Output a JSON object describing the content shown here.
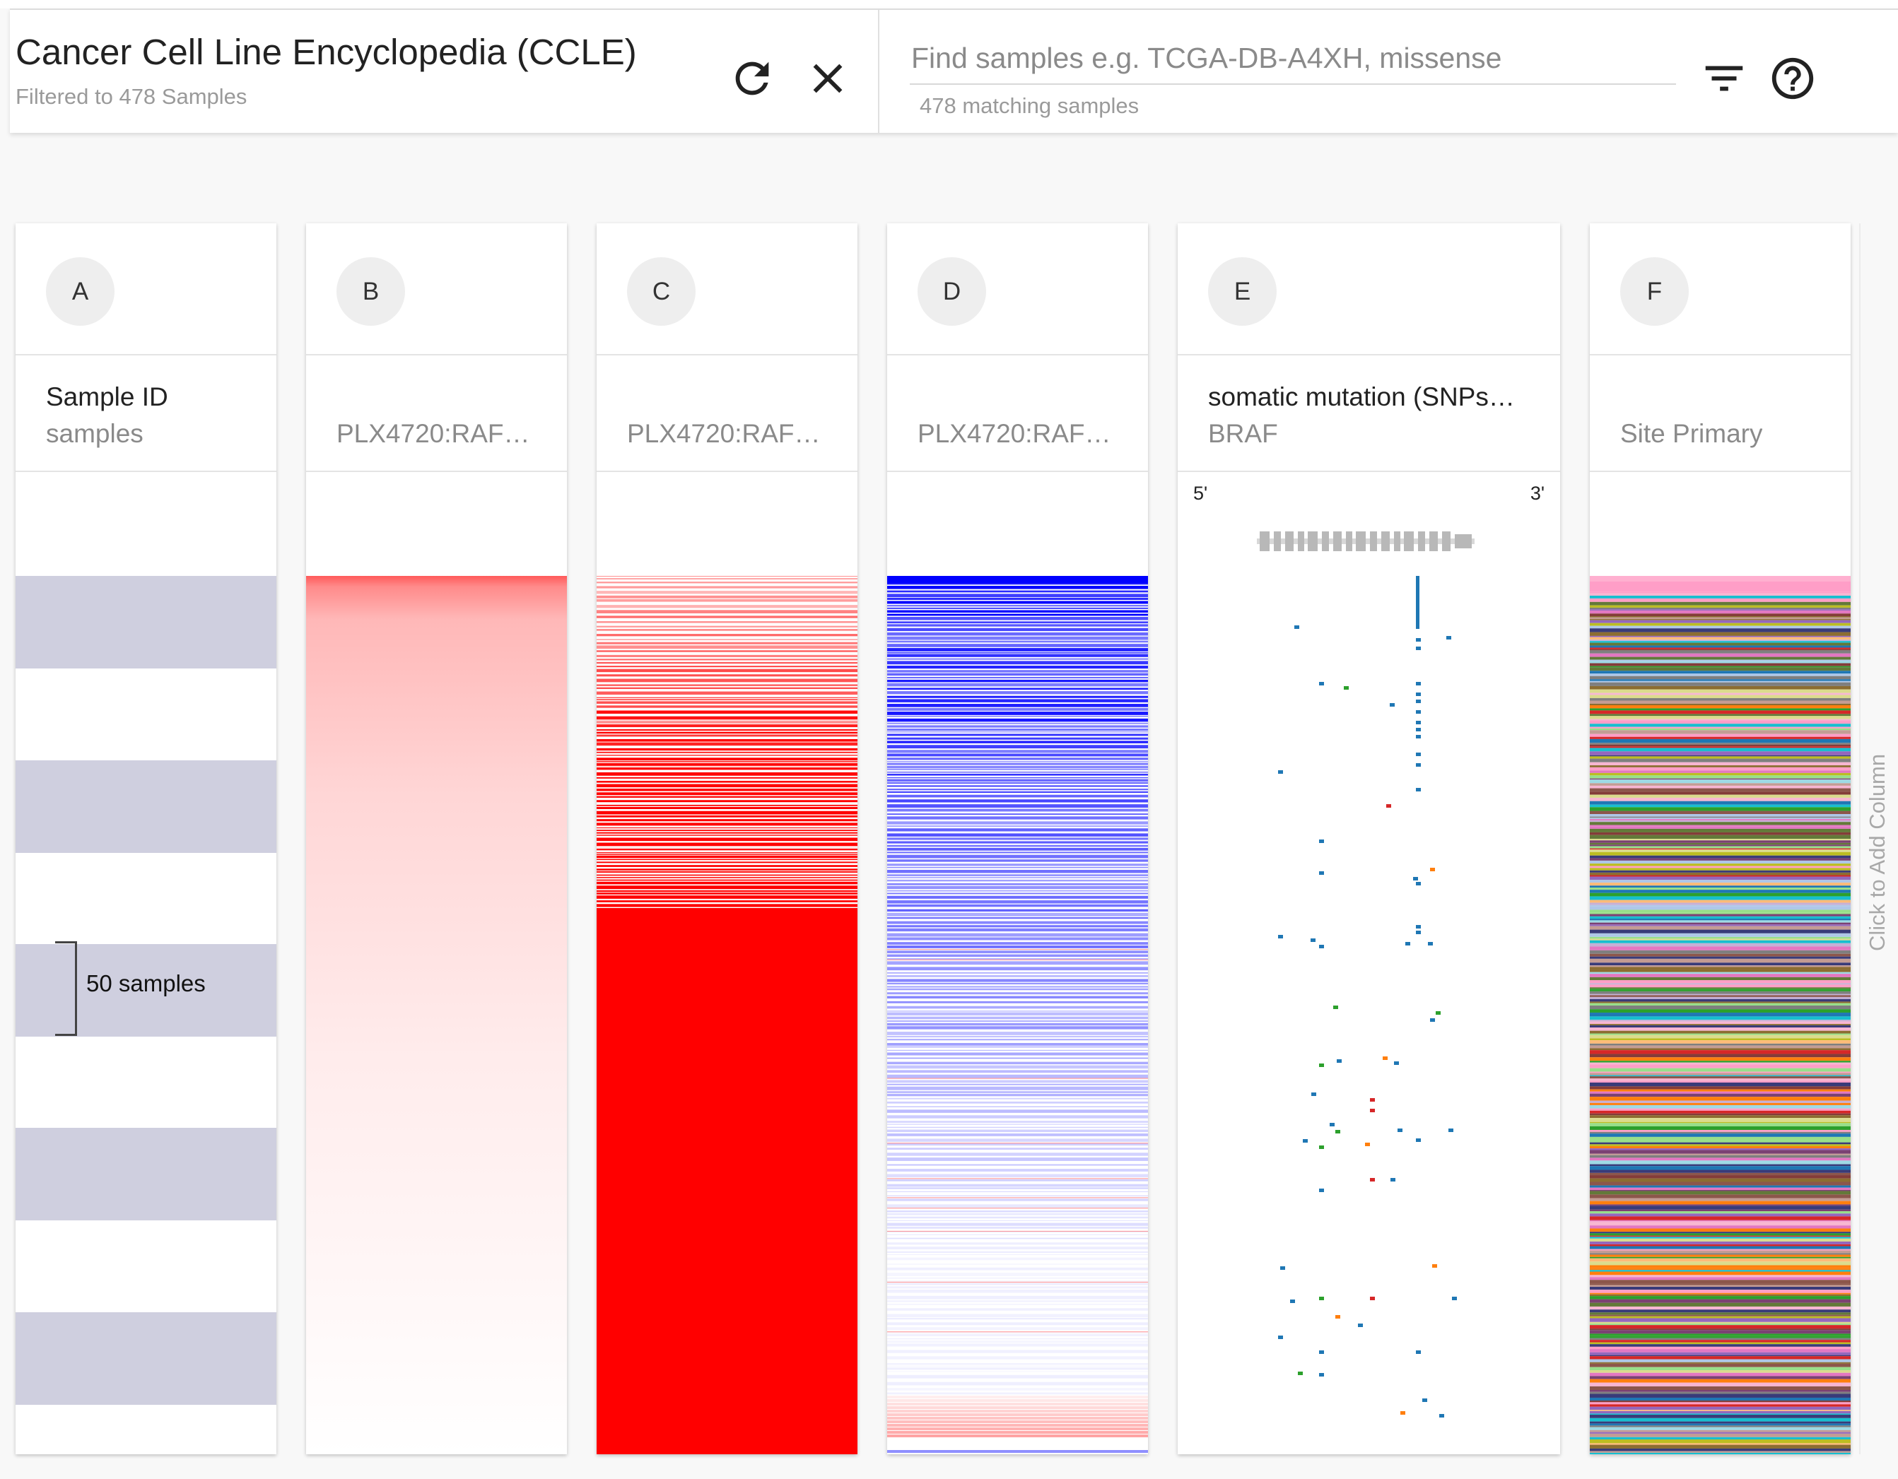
{
  "header": {
    "title": "Cancer Cell Line Encyclopedia (CCLE)",
    "subtitle": "Filtered to 478 Samples",
    "refresh_icon": "refresh-icon",
    "close_icon": "close-icon"
  },
  "search": {
    "placeholder": "Find samples e.g. TCGA-DB-A4XH, missense",
    "match_count": "478 matching samples",
    "filter_icon": "filter-icon",
    "help_icon": "help-icon"
  },
  "columns": [
    {
      "letter": "A",
      "title": "Sample ID",
      "subtitle": "samples"
    },
    {
      "letter": "B",
      "title": "",
      "subtitle": "PLX4720:RAF…",
      "heat": "red-gradient"
    },
    {
      "letter": "C",
      "title": "",
      "subtitle": "PLX4720:RAF…",
      "heat": "red-lines"
    },
    {
      "letter": "D",
      "title": "",
      "subtitle": "PLX4720:RAF…",
      "heat": "blue-lines"
    },
    {
      "letter": "E",
      "title": "somatic mutation (SNPs…",
      "subtitle": "BRAF",
      "end5": "5'",
      "end3": "3'"
    },
    {
      "letter": "F",
      "title": "",
      "subtitle": "Site Primary",
      "heat": "categorical"
    }
  ],
  "samples_label": "50 samples",
  "add_column_label": "Click to Add Column",
  "colors": {
    "band": "#cfcfdf",
    "high_red": "#ff0000",
    "high_blue": "#0000ff",
    "mutation_default": "#1f77b4"
  }
}
